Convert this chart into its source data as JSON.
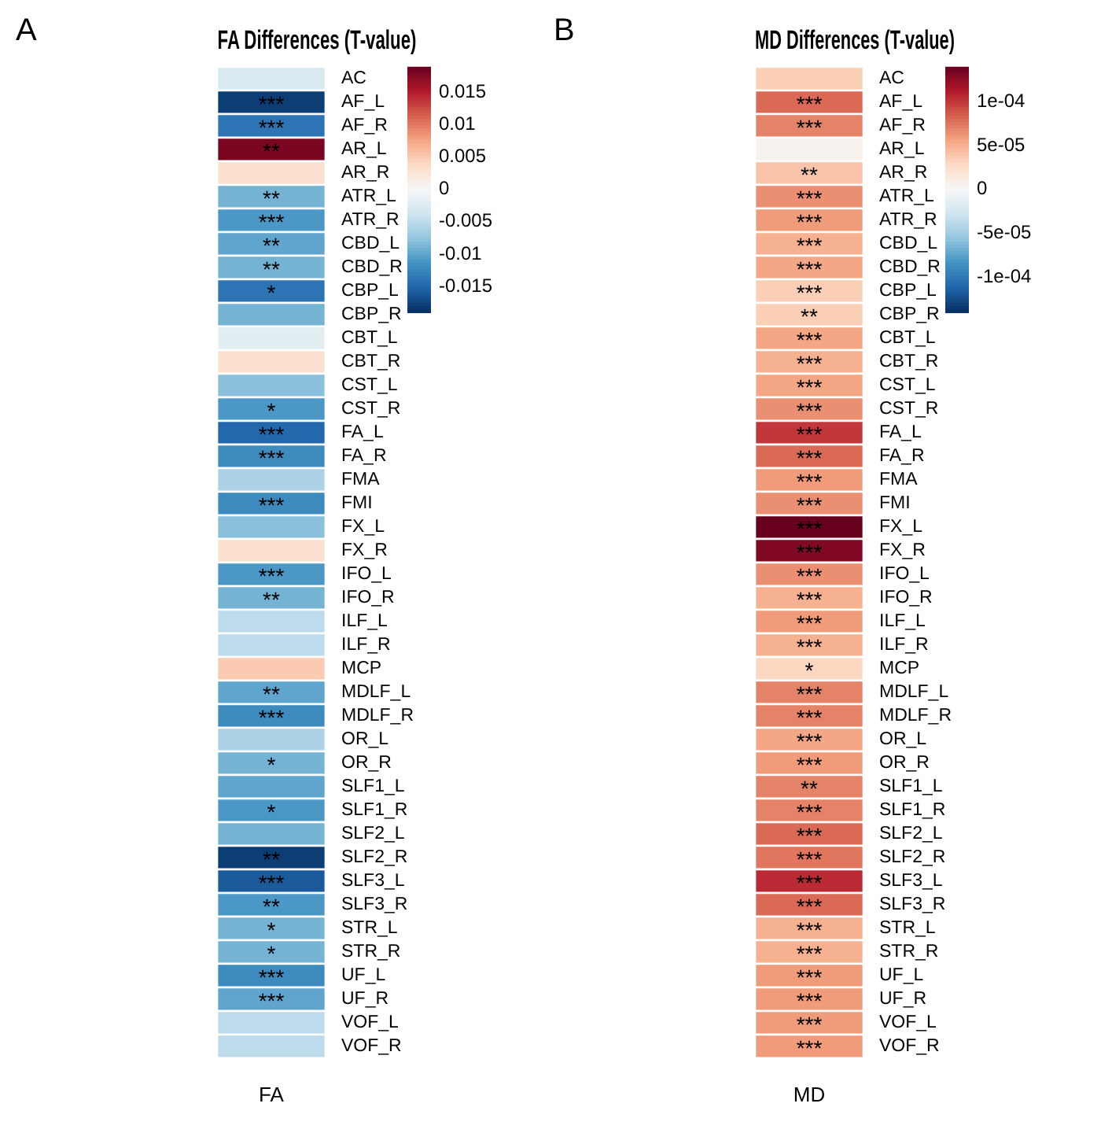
{
  "chart_data": [
    {
      "type": "heatmap",
      "title": "FA Differences (T-value)",
      "annotations": [
        "A"
      ],
      "categories": [
        "FA"
      ],
      "y_categories": [
        "AC",
        "AF_L",
        "AF_R",
        "AR_L",
        "AR_R",
        "ATR_L",
        "ATR_R",
        "CBD_L",
        "CBD_R",
        "CBP_L",
        "CBP_R",
        "CBT_L",
        "CBT_R",
        "CST_L",
        "CST_R",
        "FA_L",
        "FA_R",
        "FMA",
        "FMI",
        "FX_L",
        "FX_R",
        "IFO_L",
        "IFO_R",
        "ILF_L",
        "ILF_R",
        "MCP",
        "MDLF_L",
        "MDLF_R",
        "OR_L",
        "OR_R",
        "SLF1_L",
        "SLF1_R",
        "SLF2_L",
        "SLF2_R",
        "SLF3_L",
        "SLF3_R",
        "STR_L",
        "STR_R",
        "UF_L",
        "UF_R",
        "VOF_L",
        "VOF_R"
      ],
      "cells": [
        [
          -0.003
        ],
        [
          -0.018
        ],
        [
          -0.014
        ],
        [
          0.018
        ],
        [
          0.003
        ],
        [
          -0.009
        ],
        [
          -0.011
        ],
        [
          -0.01
        ],
        [
          -0.009
        ],
        [
          -0.014
        ],
        [
          -0.009
        ],
        [
          -0.002
        ],
        [
          0.003
        ],
        [
          -0.008
        ],
        [
          -0.011
        ],
        [
          -0.015
        ],
        [
          -0.012
        ],
        [
          -0.006
        ],
        [
          -0.012
        ],
        [
          -0.008
        ],
        [
          0.003
        ],
        [
          -0.011
        ],
        [
          -0.009
        ],
        [
          -0.005
        ],
        [
          -0.005
        ],
        [
          0.005
        ],
        [
          -0.01
        ],
        [
          -0.012
        ],
        [
          -0.006
        ],
        [
          -0.009
        ],
        [
          -0.01
        ],
        [
          -0.011
        ],
        [
          -0.009
        ],
        [
          -0.018
        ],
        [
          -0.016
        ],
        [
          -0.011
        ],
        [
          -0.009
        ],
        [
          -0.009
        ],
        [
          -0.012
        ],
        [
          -0.01
        ],
        [
          -0.005
        ],
        [
          -0.005
        ]
      ],
      "cell_labels": [
        [
          null
        ],
        [
          "***"
        ],
        [
          "***"
        ],
        [
          "**"
        ],
        [
          null
        ],
        [
          "**"
        ],
        [
          "***"
        ],
        [
          "**"
        ],
        [
          "**"
        ],
        [
          "*"
        ],
        [
          null
        ],
        [
          null
        ],
        [
          null
        ],
        [
          null
        ],
        [
          "*"
        ],
        [
          "***"
        ],
        [
          "***"
        ],
        [
          null
        ],
        [
          "***"
        ],
        [
          null
        ],
        [
          null
        ],
        [
          "***"
        ],
        [
          "**"
        ],
        [
          null
        ],
        [
          null
        ],
        [
          null
        ],
        [
          "**"
        ],
        [
          "***"
        ],
        [
          null
        ],
        [
          "*"
        ],
        [
          null
        ],
        [
          "*"
        ],
        [
          null
        ],
        [
          "**"
        ],
        [
          "***"
        ],
        [
          "**"
        ],
        [
          "*"
        ],
        [
          "*"
        ],
        [
          "***"
        ],
        [
          "***"
        ],
        [
          null
        ],
        [
          null
        ]
      ],
      "clim": [
        -0.019,
        0.019
      ],
      "cticks": [
        -0.015,
        -0.01,
        -0.005,
        0,
        0.005,
        0.01,
        0.015
      ]
    },
    {
      "type": "heatmap",
      "title": "MD Differences (T-value)",
      "annotations": [
        "B"
      ],
      "categories": [
        "MD"
      ],
      "y_categories": [
        "AC",
        "AF_L",
        "AF_R",
        "AR_L",
        "AR_R",
        "ATR_L",
        "ATR_R",
        "CBD_L",
        "CBD_R",
        "CBP_L",
        "CBP_R",
        "CBT_L",
        "CBT_R",
        "CST_L",
        "CST_R",
        "FA_L",
        "FA_R",
        "FMA",
        "FMI",
        "FX_L",
        "FX_R",
        "IFO_L",
        "IFO_R",
        "ILF_L",
        "ILF_R",
        "MCP",
        "MDLF_L",
        "MDLF_R",
        "OR_L",
        "OR_R",
        "SLF1_L",
        "SLF1_R",
        "SLF2_L",
        "SLF2_R",
        "SLF3_L",
        "SLF3_R",
        "STR_L",
        "STR_R",
        "UF_L",
        "UF_R",
        "VOF_L",
        "VOF_R"
      ],
      "cells": [
        [
          3.5e-05
        ],
        [
          8e-05
        ],
        [
          7e-05
        ],
        [
          5e-06
        ],
        [
          4e-05
        ],
        [
          6.5e-05
        ],
        [
          6e-05
        ],
        [
          5e-05
        ],
        [
          5.5e-05
        ],
        [
          3.5e-05
        ],
        [
          3.5e-05
        ],
        [
          5.5e-05
        ],
        [
          5e-05
        ],
        [
          5.5e-05
        ],
        [
          6.5e-05
        ],
        [
          0.0001
        ],
        [
          8e-05
        ],
        [
          6e-05
        ],
        [
          6.5e-05
        ],
        [
          0.00014
        ],
        [
          0.00013
        ],
        [
          6.5e-05
        ],
        [
          5e-05
        ],
        [
          6e-05
        ],
        [
          5e-05
        ],
        [
          3e-05
        ],
        [
          7e-05
        ],
        [
          7e-05
        ],
        [
          5.5e-05
        ],
        [
          6e-05
        ],
        [
          7e-05
        ],
        [
          7e-05
        ],
        [
          8e-05
        ],
        [
          7.5e-05
        ],
        [
          0.000105
        ],
        [
          8e-05
        ],
        [
          5e-05
        ],
        [
          5e-05
        ],
        [
          6e-05
        ],
        [
          6e-05
        ],
        [
          6e-05
        ],
        [
          6e-05
        ]
      ],
      "cell_labels": [
        [
          null
        ],
        [
          "***"
        ],
        [
          "***"
        ],
        [
          null
        ],
        [
          "**"
        ],
        [
          "***"
        ],
        [
          "***"
        ],
        [
          "***"
        ],
        [
          "***"
        ],
        [
          "***"
        ],
        [
          "**"
        ],
        [
          "***"
        ],
        [
          "***"
        ],
        [
          "***"
        ],
        [
          "***"
        ],
        [
          "***"
        ],
        [
          "***"
        ],
        [
          "***"
        ],
        [
          "***"
        ],
        [
          "***"
        ],
        [
          "***"
        ],
        [
          "***"
        ],
        [
          "***"
        ],
        [
          "***"
        ],
        [
          "***"
        ],
        [
          "*"
        ],
        [
          "***"
        ],
        [
          "***"
        ],
        [
          "***"
        ],
        [
          "***"
        ],
        [
          "**"
        ],
        [
          "***"
        ],
        [
          "***"
        ],
        [
          "***"
        ],
        [
          "***"
        ],
        [
          "***"
        ],
        [
          "***"
        ],
        [
          "***"
        ],
        [
          "***"
        ],
        [
          "***"
        ],
        [
          "***"
        ],
        [
          "***"
        ]
      ],
      "clim": [
        -0.00014,
        0.00014
      ],
      "cticks": [
        {
          "value": -0.0001,
          "label": "-1e-04"
        },
        {
          "value": -5e-05,
          "label": "-5e-05"
        },
        0,
        {
          "value": 5e-05,
          "label": "5e-05"
        },
        {
          "value": 0.0001,
          "label": "1e-04"
        }
      ]
    }
  ]
}
